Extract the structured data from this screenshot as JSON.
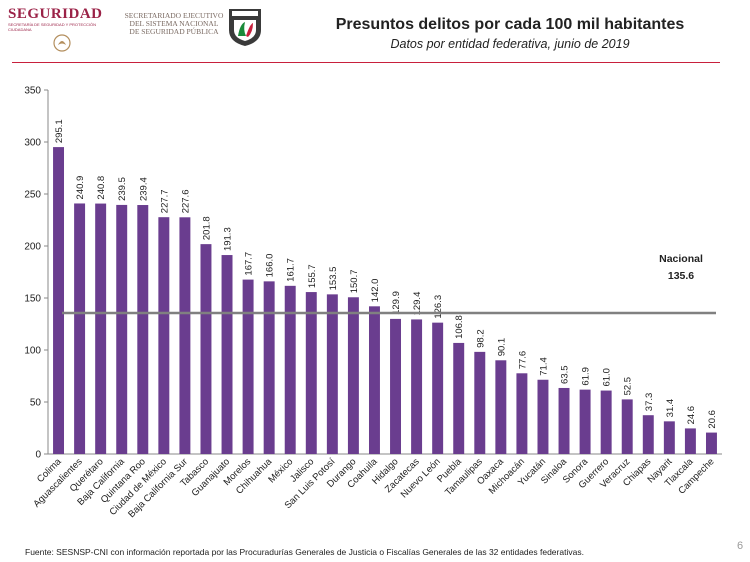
{
  "header": {
    "logo_text": "SEGURIDAD",
    "logo_sub": "SECRETARÍA DE SEGURIDAD Y PROTECCIÓN CIUDADANA",
    "agency": "SECRETARIADO EJECUTIVO DEL SISTEMA NACIONAL DE SEGURIDAD PÚBLICA",
    "shield_text": "SECRETARIADO EJECUTIVO",
    "title": "Presuntos delitos por cada 100 mil habitantes",
    "subtitle": "Datos por entidad federativa, junio de 2019"
  },
  "footer": {
    "source": "Fuente: SESNSP-CNI con información reportada por las Procuradurías Generales de Justicia o Fiscalías Generales de las 32 entidades federativas.",
    "page_number": "6"
  },
  "colors": {
    "bar": "#6a3d8f",
    "reference_line": "#808080",
    "brand": "#9b2247",
    "rule": "#c8203d"
  },
  "chart_data": {
    "type": "bar",
    "title": "Presuntos delitos por cada 100 mil habitantes",
    "subtitle": "Datos por entidad federativa, junio de 2019",
    "categories": [
      "Colima",
      "Aguascalientes",
      "Querétaro",
      "Baja California",
      "Quintana Roo",
      "Ciudad de México",
      "Baja California Sur",
      "Tabasco",
      "Guanajuato",
      "Morelos",
      "Chihuahua",
      "México",
      "Jalisco",
      "San Luis Potosí",
      "Durango",
      "Coahuila",
      "Hidalgo",
      "Zacatecas",
      "Nuevo León",
      "Puebla",
      "Tamaulipas",
      "Oaxaca",
      "Michoacán",
      "Yucatán",
      "Sinaloa",
      "Sonora",
      "Guerrero",
      "Veracruz",
      "Chiapas",
      "Nayarit",
      "Tlaxcala",
      "Campeche"
    ],
    "values": [
      295.1,
      240.9,
      240.8,
      239.5,
      239.4,
      227.7,
      227.6,
      201.8,
      191.3,
      167.7,
      166.0,
      161.7,
      155.7,
      153.5,
      150.7,
      142.0,
      129.9,
      129.4,
      126.3,
      106.8,
      98.2,
      90.1,
      77.6,
      71.4,
      63.5,
      61.9,
      61.0,
      52.5,
      37.3,
      31.4,
      24.6,
      20.6
    ],
    "value_labels": [
      "295.1",
      "240.9",
      "240.8",
      "239.5",
      "239.4",
      "227.7",
      "227.6",
      "201.8",
      "191.3",
      "167.7",
      "166.0",
      "161.7",
      "155.7",
      "153.5",
      "150.7",
      "142.0",
      "129.9",
      "129.4",
      "126.3",
      "106.8",
      "98.2",
      "90.1",
      "77.6",
      "71.4",
      "63.5",
      "61.9",
      "61.0",
      "52.5",
      "37.3",
      "31.4",
      "24.6",
      "20.6"
    ],
    "ylim": [
      0,
      350
    ],
    "yticks": [
      0,
      50,
      100,
      150,
      200,
      250,
      300,
      350
    ],
    "grid": false,
    "reference": {
      "label": "Nacional",
      "value": 135.6,
      "value_label": "135.6"
    }
  }
}
